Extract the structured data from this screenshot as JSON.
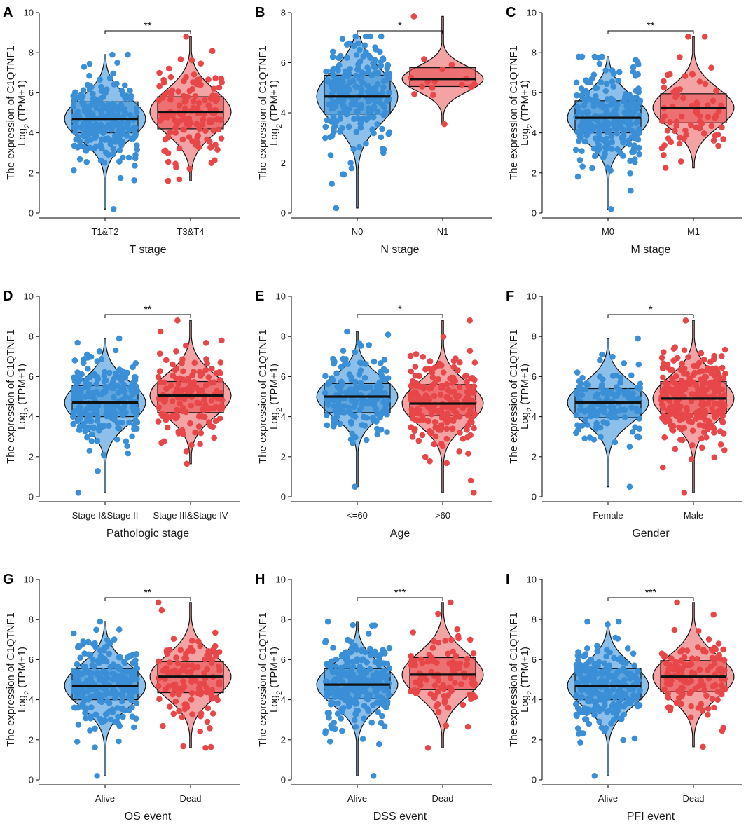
{
  "figure": {
    "measure": "C1QTNF1",
    "colors": {
      "group1": "#3a8fd6",
      "group2": "#e8474a",
      "group1_light": "#8cc0ea",
      "group2_light": "#f3a3a4"
    }
  },
  "chart_data": [
    {
      "panel": "A",
      "type": "box-violin",
      "xlabel": "T stage",
      "ylabel_line1": "The expression of C1QTNF1",
      "ylabel_line2": "Log",
      "ylabel_sub": "2",
      "ylabel_suffix": " (TPM+1)",
      "ylim": [
        0,
        10
      ],
      "yticks": [
        0,
        2,
        4,
        6,
        8,
        10
      ],
      "significance": "**",
      "groups": [
        {
          "name": "T1&T2",
          "q1": 4.0,
          "median": 4.7,
          "q3": 5.55,
          "min": 0.2,
          "max": 7.9,
          "color": "#3a8fd6",
          "n": 230,
          "seed": 11
        },
        {
          "name": "T3&T4",
          "q1": 4.2,
          "median": 5.05,
          "q3": 5.8,
          "min": 1.6,
          "max": 8.8,
          "color": "#e8474a",
          "n": 140,
          "seed": 12
        }
      ]
    },
    {
      "panel": "B",
      "type": "box-violin",
      "xlabel": "N stage",
      "ylabel_line1": "The expression of C1QTNF1",
      "ylabel_line2": "Log",
      "ylabel_sub": "2",
      "ylabel_suffix": " (TPM+1)",
      "ylim": [
        0,
        8
      ],
      "yticks": [
        0,
        2,
        4,
        6,
        8
      ],
      "significance": "*",
      "groups": [
        {
          "name": "N0",
          "q1": 3.95,
          "median": 4.65,
          "q3": 5.5,
          "min": 0.2,
          "max": 7.05,
          "color": "#3a8fd6",
          "n": 230,
          "seed": 21
        },
        {
          "name": "N1",
          "q1": 5.05,
          "median": 5.35,
          "q3": 5.8,
          "min": 3.55,
          "max": 7.85,
          "color": "#e8474a",
          "n": 16,
          "seed": 22
        }
      ]
    },
    {
      "panel": "C",
      "type": "box-violin",
      "xlabel": "M stage",
      "ylabel_line1": "The expression of C1QTNF1",
      "ylabel_line2": "Log",
      "ylabel_sub": "2",
      "ylabel_suffix": " (TPM+1)",
      "ylim": [
        0,
        10
      ],
      "yticks": [
        0,
        2,
        4,
        6,
        8,
        10
      ],
      "significance": "**",
      "groups": [
        {
          "name": "M0",
          "q1": 4.0,
          "median": 4.75,
          "q3": 5.6,
          "min": 0.2,
          "max": 7.8,
          "color": "#3a8fd6",
          "n": 260,
          "seed": 31
        },
        {
          "name": "M1",
          "q1": 4.5,
          "median": 5.25,
          "q3": 5.95,
          "min": 2.25,
          "max": 8.8,
          "color": "#e8474a",
          "n": 70,
          "seed": 32
        }
      ]
    },
    {
      "panel": "D",
      "type": "box-violin",
      "xlabel": "Pathologic stage",
      "ylabel_line1": "The expression of C1QTNF1",
      "ylabel_line2": "Log",
      "ylabel_sub": "2",
      "ylabel_suffix": " (TPM+1)",
      "ylim": [
        0,
        10
      ],
      "yticks": [
        0,
        2,
        4,
        6,
        8,
        10
      ],
      "significance": "**",
      "groups": [
        {
          "name": "Stage I&Stage II",
          "q1": 4.0,
          "median": 4.7,
          "q3": 5.55,
          "min": 0.2,
          "max": 7.9,
          "color": "#3a8fd6",
          "n": 230,
          "seed": 41
        },
        {
          "name": "Stage III&Stage IV",
          "q1": 4.2,
          "median": 5.05,
          "q3": 5.75,
          "min": 1.65,
          "max": 8.8,
          "color": "#e8474a",
          "n": 150,
          "seed": 42
        }
      ]
    },
    {
      "panel": "E",
      "type": "box-violin",
      "xlabel": "Age",
      "ylabel_line1": "The expression of C1QTNF1",
      "ylabel_line2": "Log",
      "ylabel_sub": "2",
      "ylabel_suffix": " (TPM+1)",
      "ylim": [
        0,
        10
      ],
      "yticks": [
        0,
        2,
        4,
        6,
        8,
        10
      ],
      "significance": "*",
      "groups": [
        {
          "name": "<=60",
          "q1": 4.2,
          "median": 5.0,
          "q3": 5.65,
          "min": 0.5,
          "max": 8.25,
          "color": "#3a8fd6",
          "n": 170,
          "seed": 51
        },
        {
          "name": ">60",
          "q1": 4.05,
          "median": 4.65,
          "q3": 5.6,
          "min": 0.2,
          "max": 8.8,
          "color": "#e8474a",
          "n": 210,
          "seed": 52
        }
      ]
    },
    {
      "panel": "F",
      "type": "box-violin",
      "xlabel": "Gender",
      "ylabel_line1": "The expression of C1QTNF1",
      "ylabel_line2": "Log",
      "ylabel_sub": "2",
      "ylabel_suffix": " (TPM+1)",
      "ylim": [
        0,
        10
      ],
      "yticks": [
        0,
        2,
        4,
        6,
        8,
        10
      ],
      "significance": "*",
      "groups": [
        {
          "name": "Female",
          "q1": 3.95,
          "median": 4.7,
          "q3": 5.4,
          "min": 0.5,
          "max": 7.9,
          "color": "#3a8fd6",
          "n": 130,
          "seed": 61
        },
        {
          "name": "Male",
          "q1": 4.15,
          "median": 4.9,
          "q3": 5.75,
          "min": 0.2,
          "max": 8.8,
          "color": "#e8474a",
          "n": 250,
          "seed": 62
        }
      ]
    },
    {
      "panel": "G",
      "type": "box-violin",
      "xlabel": "OS event",
      "ylabel_line1": "The expression of C1QTNF1",
      "ylabel_line2": "Log",
      "ylabel_sub": "2",
      "ylabel_suffix": " (TPM+1)",
      "ylim": [
        0,
        10
      ],
      "yticks": [
        0,
        2,
        4,
        6,
        8,
        10
      ],
      "significance": "**",
      "groups": [
        {
          "name": "Alive",
          "q1": 4.0,
          "median": 4.7,
          "q3": 5.55,
          "min": 0.2,
          "max": 7.9,
          "color": "#3a8fd6",
          "n": 250,
          "seed": 71
        },
        {
          "name": "Dead",
          "q1": 4.35,
          "median": 5.15,
          "q3": 5.9,
          "min": 1.6,
          "max": 8.85,
          "color": "#e8474a",
          "n": 120,
          "seed": 72
        }
      ]
    },
    {
      "panel": "H",
      "type": "box-violin",
      "xlabel": "DSS event",
      "ylabel_line1": "The expression of C1QTNF1",
      "ylabel_line2": "Log",
      "ylabel_sub": "2",
      "ylabel_suffix": " (TPM+1)",
      "ylim": [
        0,
        10
      ],
      "yticks": [
        0,
        2,
        4,
        6,
        8,
        10
      ],
      "significance": "***",
      "groups": [
        {
          "name": "Alive",
          "q1": 4.05,
          "median": 4.75,
          "q3": 5.55,
          "min": 0.2,
          "max": 7.9,
          "color": "#3a8fd6",
          "n": 260,
          "seed": 81
        },
        {
          "name": "Dead",
          "q1": 4.5,
          "median": 5.25,
          "q3": 6.1,
          "min": 1.6,
          "max": 8.85,
          "color": "#e8474a",
          "n": 100,
          "seed": 82
        }
      ]
    },
    {
      "panel": "I",
      "type": "box-violin",
      "xlabel": "PFI event",
      "ylabel_line1": "The expression of C1QTNF1",
      "ylabel_line2": "Log",
      "ylabel_sub": "2",
      "ylabel_suffix": " (TPM+1)",
      "ylim": [
        0,
        10
      ],
      "yticks": [
        0,
        2,
        4,
        6,
        8,
        10
      ],
      "significance": "***",
      "groups": [
        {
          "name": "Alive",
          "q1": 4.0,
          "median": 4.7,
          "q3": 5.55,
          "min": 0.2,
          "max": 7.9,
          "color": "#3a8fd6",
          "n": 240,
          "seed": 91
        },
        {
          "name": "Dead",
          "q1": 4.4,
          "median": 5.15,
          "q3": 5.95,
          "min": 1.65,
          "max": 8.85,
          "color": "#e8474a",
          "n": 130,
          "seed": 92
        }
      ]
    }
  ]
}
